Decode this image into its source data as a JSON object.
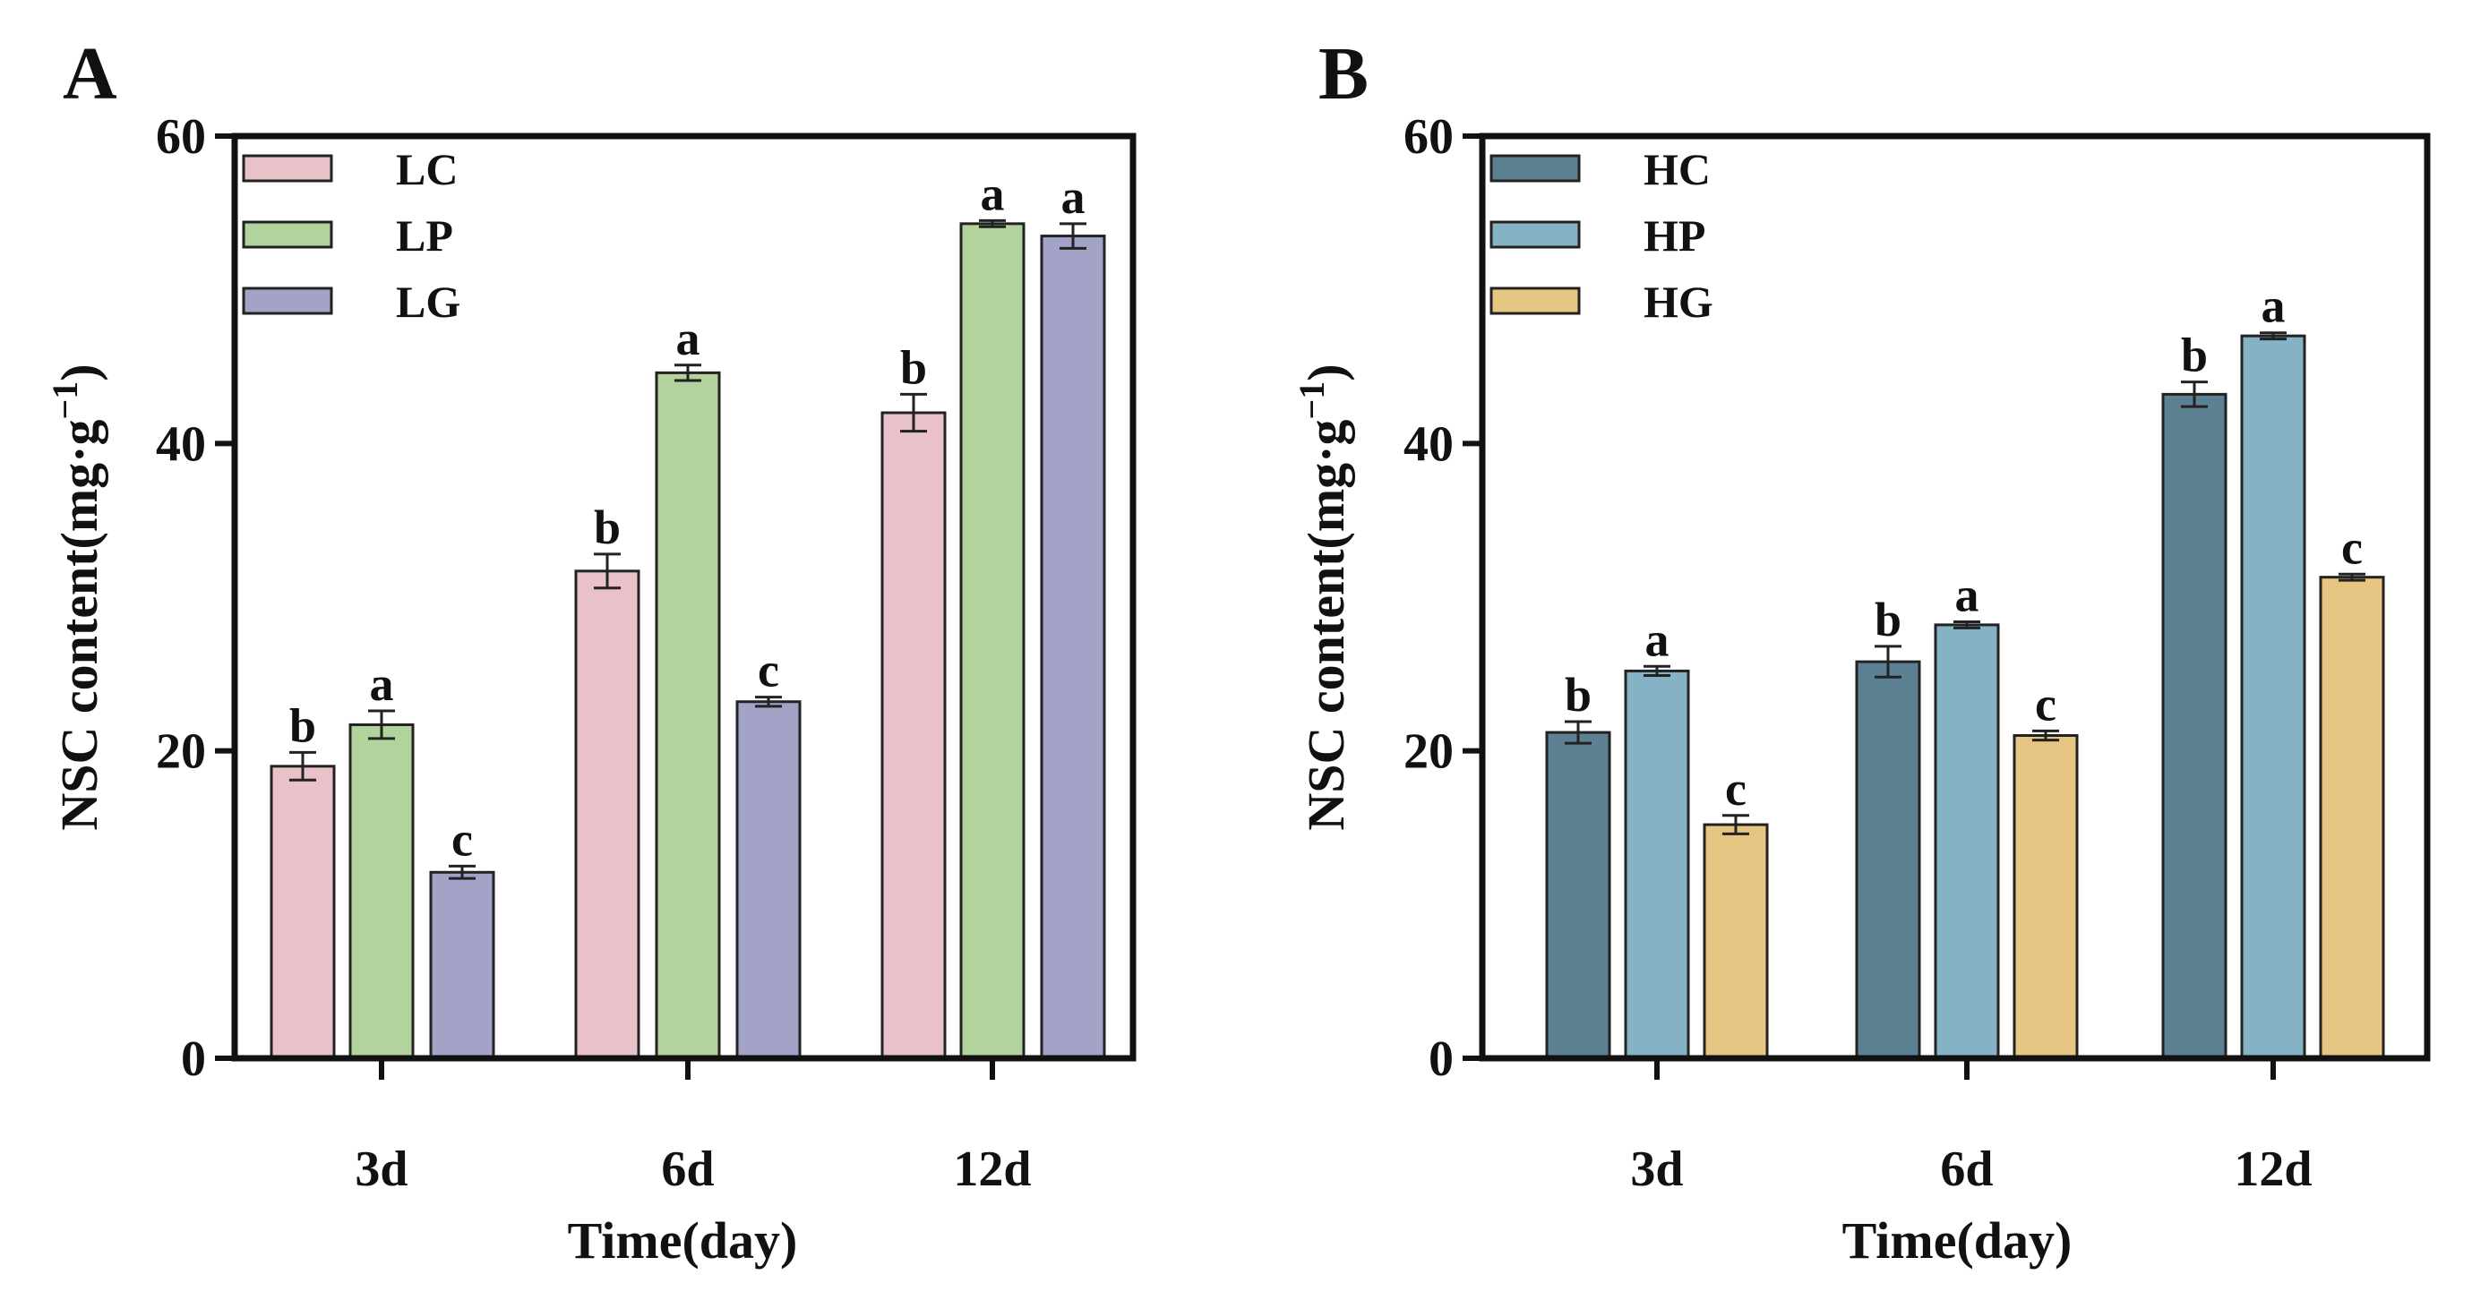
{
  "chart_data": [
    {
      "panel": "A",
      "type": "bar",
      "categories": [
        "3d",
        "6d",
        "12d"
      ],
      "xlabel": "Time(day)",
      "ylabel_main": "NSC content(mg·g",
      "ylabel_sup": "−1",
      "ylabel_close": ")",
      "ylim": [
        0,
        60
      ],
      "yticks": [
        "0",
        "20",
        "40",
        "60"
      ],
      "legend_position": "top-left",
      "series": [
        {
          "name": "LC",
          "color": "#e8c2c8",
          "values": [
            19.0,
            31.7,
            42.0
          ],
          "errors": [
            0.9,
            1.1,
            1.2
          ],
          "labels": [
            "b",
            "b",
            "b"
          ]
        },
        {
          "name": "LP",
          "color": "#b3d39c",
          "values": [
            21.7,
            44.6,
            54.3
          ],
          "errors": [
            0.9,
            0.5,
            0.2
          ],
          "labels": [
            "a",
            "a",
            "a"
          ]
        },
        {
          "name": "LG",
          "color": "#a3a3c8",
          "values": [
            12.1,
            23.2,
            53.5
          ],
          "errors": [
            0.4,
            0.3,
            0.8
          ],
          "labels": [
            "c",
            "c",
            "a"
          ]
        }
      ]
    },
    {
      "panel": "B",
      "type": "bar",
      "categories": [
        "3d",
        "6d",
        "12d"
      ],
      "xlabel": "Time(day)",
      "ylabel_main": "NSC content(mg·g",
      "ylabel_sup": "−1",
      "ylabel_close": ")",
      "ylim": [
        0,
        60
      ],
      "yticks": [
        "0",
        "20",
        "40",
        "60"
      ],
      "legend_position": "top-left",
      "series": [
        {
          "name": "HC",
          "color": "#5c8192",
          "values": [
            21.2,
            25.8,
            43.2
          ],
          "errors": [
            0.7,
            1.0,
            0.8
          ],
          "labels": [
            "b",
            "b",
            "b"
          ]
        },
        {
          "name": "HP",
          "color": "#85b3c5",
          "values": [
            25.2,
            28.2,
            47.0
          ],
          "errors": [
            0.3,
            0.2,
            0.2
          ],
          "labels": [
            "a",
            "a",
            "a"
          ]
        },
        {
          "name": "HG",
          "color": "#e6c482",
          "values": [
            15.2,
            21.0,
            31.3
          ],
          "errors": [
            0.6,
            0.3,
            0.2
          ],
          "labels": [
            "c",
            "c",
            "c"
          ]
        }
      ]
    }
  ]
}
